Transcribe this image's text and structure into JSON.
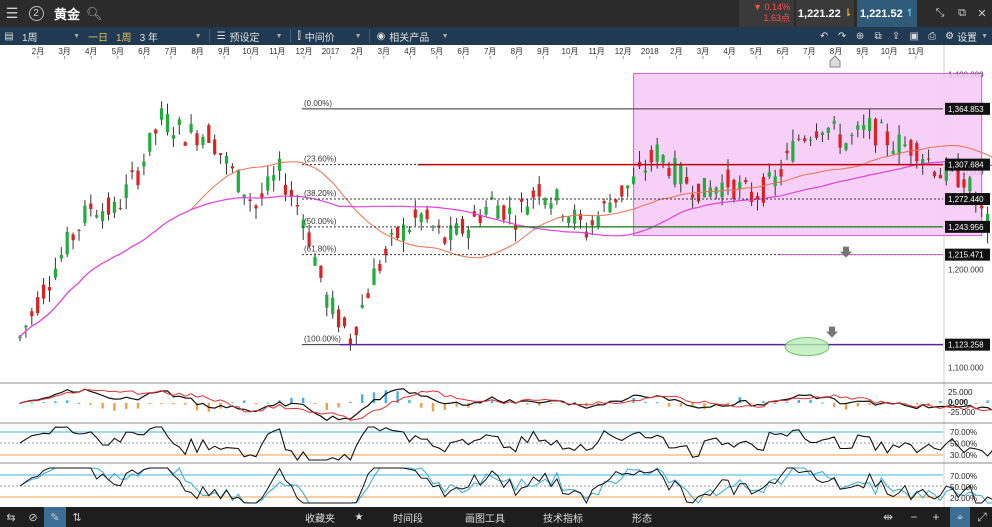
{
  "topbar": {
    "menu_icon": "menu-icon",
    "workspace_number": "2",
    "instrument": "黄金",
    "change_percent": "▼ 0.14%",
    "change_points": "1.63点",
    "sell_price": "1,221.22",
    "buy_price": "1,221.52"
  },
  "toolbar": {
    "interval": "1周",
    "quick_day": "一日",
    "quick_week": "1周",
    "range": "3 年",
    "preset": "预设定",
    "price_type": "中间价",
    "related": "相关产品",
    "settings": "设置"
  },
  "chart_data": {
    "type": "candlestick",
    "x_ticks": [
      "2月",
      "3月",
      "4月",
      "5月",
      "6月",
      "7月",
      "8月",
      "9月",
      "10月",
      "11月",
      "12月",
      "2017",
      "2月",
      "3月",
      "4月",
      "5月",
      "6月",
      "7月",
      "8月",
      "9月",
      "10月",
      "11月",
      "12月",
      "2018",
      "2月",
      "3月",
      "4月",
      "5月",
      "6月",
      "7月",
      "8月",
      "9月",
      "10月",
      "11月"
    ],
    "y_ticks": [
      "1,400.000",
      "1,300.000",
      "1,200.000",
      "1,100.000"
    ],
    "ylim": [
      1085,
      1420
    ],
    "price_labels": [
      {
        "value": 1364.853,
        "text": "1,364.853"
      },
      {
        "value": 1307.684,
        "text": "1,307.684"
      },
      {
        "value": 1272.44,
        "text": "1,272.440"
      },
      {
        "value": 1243.956,
        "text": "1,243.956"
      },
      {
        "value": 1215.471,
        "text": "1,215.471"
      },
      {
        "value": 1123.258,
        "text": "1,123.258"
      }
    ],
    "fib_levels": [
      {
        "label": "(0.00%)",
        "value": 1364.853
      },
      {
        "label": "(23.60%)",
        "value": 1307.684
      },
      {
        "label": "(38.20%)",
        "value": 1272.44
      },
      {
        "label": "(50.00%)",
        "value": 1243.956
      },
      {
        "label": "(61.80%)",
        "value": 1215.471
      },
      {
        "label": "(100.00%)",
        "value": 1123.258
      }
    ],
    "highlight_box": {
      "from_week": 104,
      "to_week": 163,
      "top_value": 1401,
      "bottom_value": 1235
    },
    "macd_labels": [
      "25.000",
      "0.000",
      "-25.000"
    ],
    "rsi_labels": [
      "70.00%",
      "50.00%",
      "30.00%"
    ],
    "stoch_labels": [
      "70.00%",
      "50.00%",
      "20.00%"
    ]
  },
  "bottombar": {
    "favorites": "收藏夹",
    "timeframe": "时间段",
    "drawing_tools": "画图工具",
    "indicators": "技术指标",
    "patterns": "形态"
  }
}
